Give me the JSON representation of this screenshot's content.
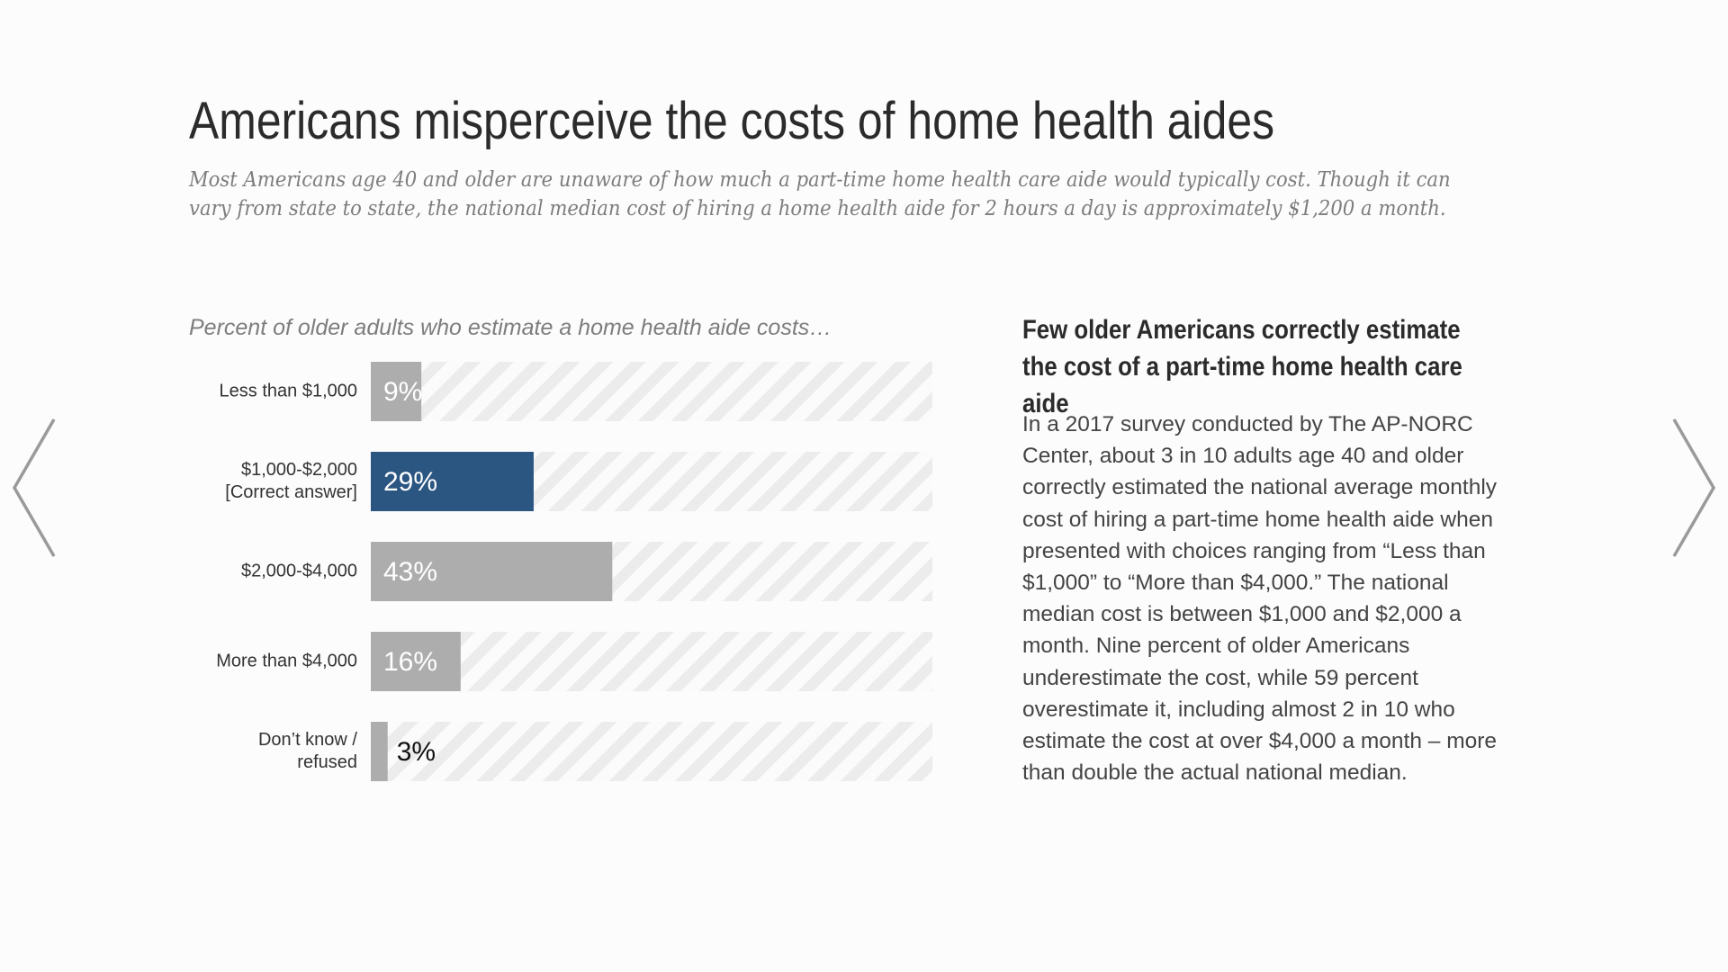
{
  "header": {
    "title": "Americans misperceive the costs of home health aides",
    "subtitle": "Most Americans age 40 and older are unaware of how much a part-time home health care aide would typically cost. Though it can vary from state to state, the national median cost of hiring a home health aide for 2 hours a day is approximately $1,200 a month."
  },
  "side_panel": {
    "heading": "Few older Americans correctly estimate the cost of a part-time home health care aide",
    "body": "In a 2017 survey conducted by The AP-NORC Center, about 3 in 10 adults age 40 and older correctly estimated the national average monthly cost of hiring a part-time home health aide when presented with choices ranging from “Less than $1,000” to “More than $4,000.” The national median cost is between $1,000 and $2,000 a month. Nine percent of older Americans underestimate the cost, while 59 percent overestimate it, including almost 2 in 10 who estimate the cost at over $4,000 a month – more than double the actual national median."
  },
  "navigation": {
    "prev_icon": "chevron-left-icon",
    "next_icon": "chevron-right-icon"
  },
  "colors": {
    "highlight_bar": "#2c5682",
    "default_bar": "#adadad",
    "stripe": "#ececec",
    "stripe_background": "#fbfbfb",
    "value_label_inside": "#ffffff",
    "value_label_outside": "#111111"
  },
  "chart_data": {
    "type": "bar",
    "orientation": "horizontal",
    "title": "Percent of older adults who estimate a home health aide costs…",
    "categories": [
      [
        "Less than $1,000"
      ],
      [
        "$1,000-$2,000",
        "[Correct answer]"
      ],
      [
        "$2,000-$4,000"
      ],
      [
        "More than $4,000"
      ],
      [
        "Don’t know /",
        "refused"
      ]
    ],
    "values": [
      9,
      29,
      43,
      16,
      3
    ],
    "value_labels": [
      "9%",
      "29%",
      "43%",
      "16%",
      "3%"
    ],
    "highlight_index": 1,
    "xlim": [
      0,
      100
    ],
    "grid": false,
    "legend": "none"
  }
}
